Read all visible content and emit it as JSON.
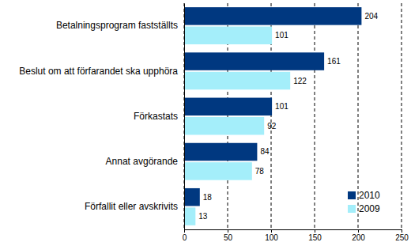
{
  "chart_data": {
    "type": "bar",
    "orientation": "horizontal",
    "categories": [
      "Betalningsprogram fastställts",
      "Beslut om att förfarandet ska upphöra",
      "Förkastats",
      "Annat avgörande",
      "Förfallit eller avskrivits"
    ],
    "series": [
      {
        "name": "2010",
        "color": "#003880",
        "values": [
          204,
          161,
          101,
          84,
          18
        ]
      },
      {
        "name": "2009",
        "color": "#a4eefa",
        "values": [
          101,
          122,
          92,
          78,
          13
        ]
      }
    ],
    "xlim": [
      0,
      250
    ],
    "xticks": [
      0,
      50,
      100,
      150,
      200,
      250
    ],
    "grid": true,
    "data_labels": true,
    "legend": "lower right"
  }
}
